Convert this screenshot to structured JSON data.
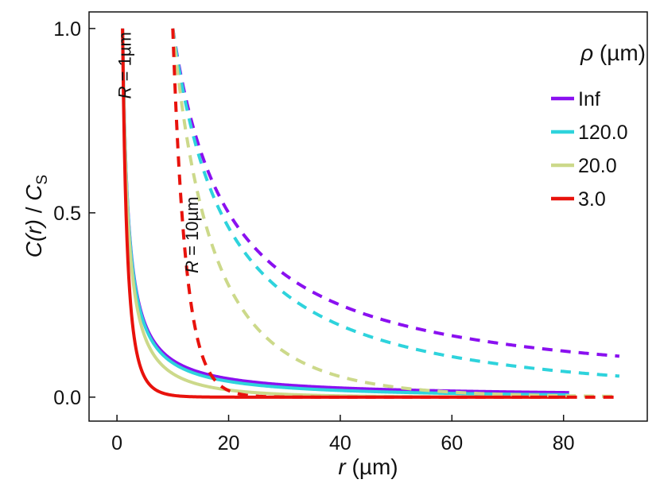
{
  "chart_data": {
    "type": "line",
    "title": "",
    "xlabel": {
      "var": "r",
      "unit": " (µm)"
    },
    "ylabel": {
      "var": "C(r)",
      "sep": " / ",
      "den": "C",
      "sub": "S"
    },
    "xlim": [
      -5,
      95
    ],
    "ylim": [
      -0.065,
      1.045
    ],
    "xticks": [
      0,
      20,
      40,
      60,
      80
    ],
    "xtick_labels": [
      "0",
      "20",
      "40",
      "60",
      "80"
    ],
    "yticks": [
      0,
      0.5,
      1.0
    ],
    "ytick_labels": [
      "0.0",
      "0.5",
      "1.0"
    ],
    "grid": false,
    "legend": {
      "title_var": "ρ",
      "title_unit": " (µm)",
      "position": "top-right",
      "entries": [
        {
          "label": "Inf",
          "color": "#8a10f0"
        },
        {
          "label": "120.0",
          "color": "#2ed3dc"
        },
        {
          "label": "20.0",
          "color": "#ccd98a"
        },
        {
          "label": "3.0",
          "color": "#e8120c"
        }
      ]
    },
    "annotations": [
      {
        "var": "R",
        "text": " = 1µm",
        "x": 2.5,
        "y": 0.9
      },
      {
        "var": "R",
        "text": " = 10µm",
        "x": 14.5,
        "y": 0.44
      }
    ],
    "series": [
      {
        "name": "Inf",
        "R": 1,
        "rho": null,
        "style": "solid",
        "color": "#8a10f0",
        "x_range": [
          1,
          81
        ]
      },
      {
        "name": "120.0",
        "R": 1,
        "rho": 120,
        "style": "solid",
        "color": "#2ed3dc",
        "x_range": [
          1,
          81
        ]
      },
      {
        "name": "20.0",
        "R": 1,
        "rho": 20,
        "style": "solid",
        "color": "#ccd98a",
        "x_range": [
          1,
          81
        ]
      },
      {
        "name": "3.0",
        "R": 1,
        "rho": 3,
        "style": "solid",
        "color": "#e8120c",
        "x_range": [
          1,
          81
        ]
      },
      {
        "name": "Inf",
        "R": 10,
        "rho": null,
        "style": "dashed",
        "color": "#8a10f0",
        "x_range": [
          10,
          90
        ]
      },
      {
        "name": "120.0",
        "R": 10,
        "rho": 120,
        "style": "dashed",
        "color": "#2ed3dc",
        "x_range": [
          10,
          90
        ]
      },
      {
        "name": "20.0",
        "R": 10,
        "rho": 20,
        "style": "dashed",
        "color": "#ccd98a",
        "x_range": [
          10,
          90
        ]
      },
      {
        "name": "3.0",
        "R": 10,
        "rho": 3,
        "style": "dashed",
        "color": "#e8120c",
        "x_range": [
          10,
          90
        ]
      }
    ]
  }
}
